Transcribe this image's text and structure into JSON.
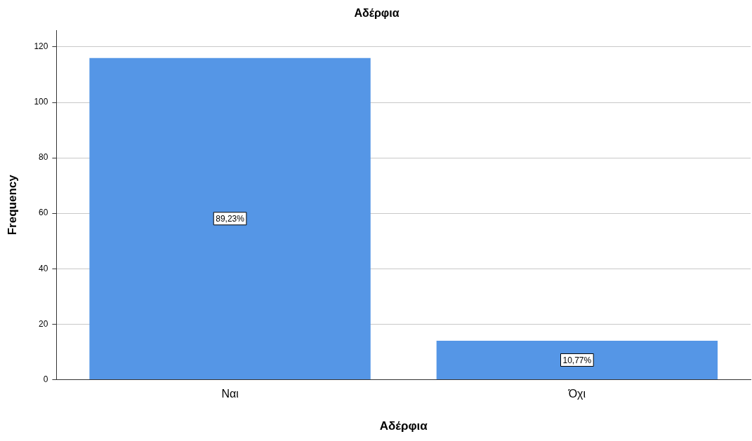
{
  "chart_data": {
    "type": "bar",
    "title": "Αδέρφια",
    "xlabel": "Αδέρφια",
    "ylabel": "Frequency",
    "categories": [
      "Ναι",
      "Όχι"
    ],
    "values": [
      116,
      14
    ],
    "color": "#5596e6",
    "annotations": [
      "89,23%",
      "10,77%"
    ],
    "ylim": [
      0,
      126
    ],
    "yticks": [
      0,
      20,
      40,
      60,
      80,
      100,
      120
    ],
    "grid": "y",
    "legend": false
  }
}
